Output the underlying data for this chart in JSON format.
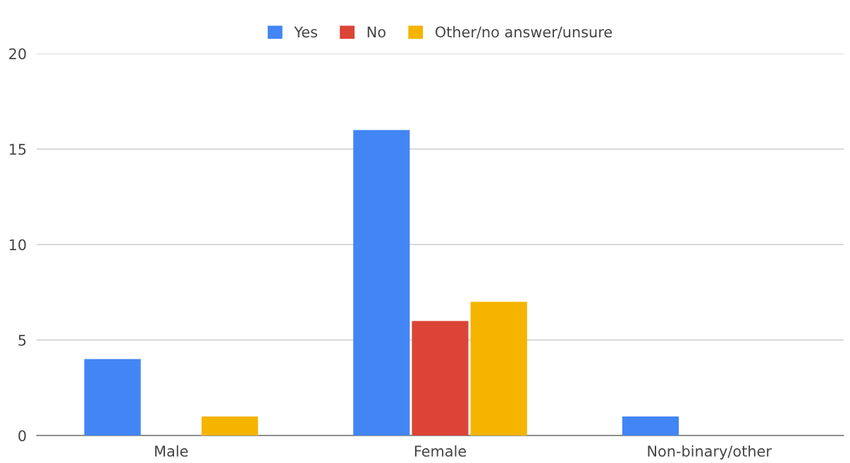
{
  "chart_data": {
    "type": "bar",
    "categories": [
      "Male",
      "Female",
      "Non-binary/other"
    ],
    "series": [
      {
        "name": "Yes",
        "color": "#4285f4",
        "values": [
          4,
          16,
          1
        ]
      },
      {
        "name": "No",
        "color": "#db4437",
        "values": [
          0,
          6,
          0
        ]
      },
      {
        "name": "Other/no answer/unsure",
        "color": "#f4b400",
        "values": [
          1,
          7,
          0
        ]
      }
    ],
    "ylim": [
      0,
      20
    ],
    "yticks": [
      0,
      5,
      10,
      15,
      20
    ],
    "grid": "y",
    "legend": "top"
  }
}
